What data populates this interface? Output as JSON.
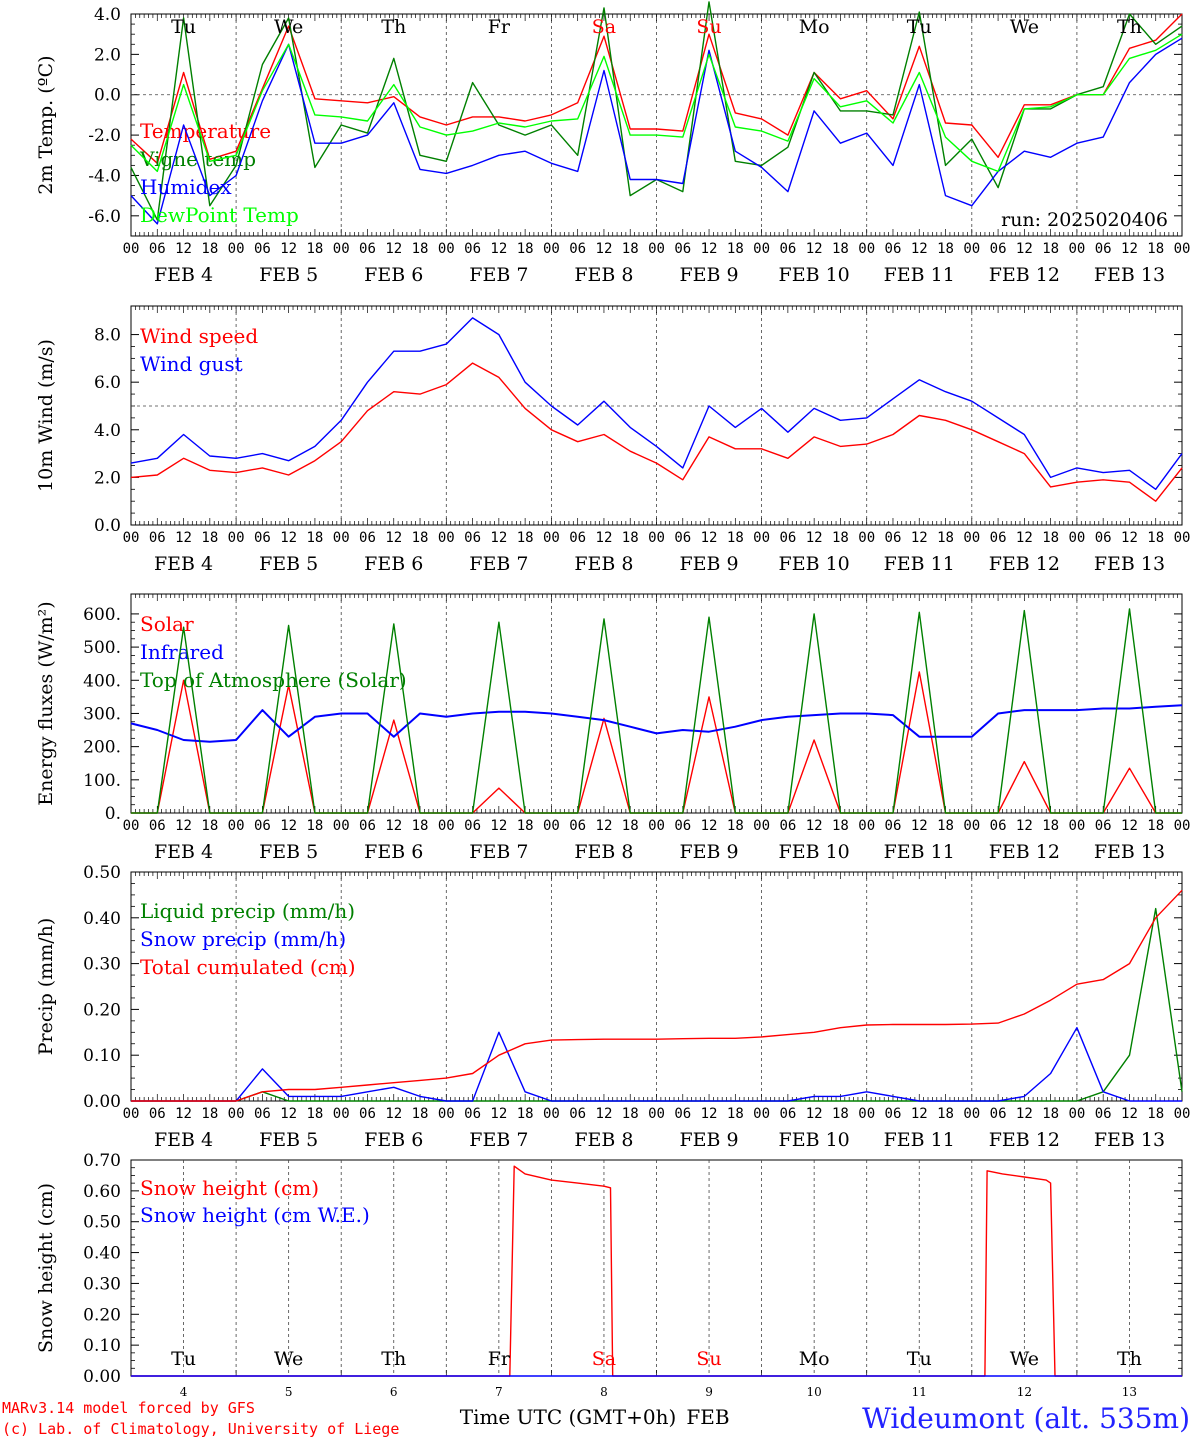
{
  "chart_data": [
    {
      "type": "line",
      "ylabel": "2m Temp. (ºC)",
      "ylim": [
        -7,
        4
      ],
      "yticks": [
        -6,
        -4,
        -2,
        0,
        2,
        4
      ],
      "ytick_labels": [
        "-6.0",
        "-4.0",
        "-2.0",
        "0.0",
        "2.0",
        "4.0"
      ],
      "reference_line": 0,
      "run_label": "run: 2025020406",
      "day_labels": [
        {
          "text": "Tu",
          "color": "#000000"
        },
        {
          "text": "We",
          "color": "#000000"
        },
        {
          "text": "Th",
          "color": "#000000"
        },
        {
          "text": "Fr",
          "color": "#000000"
        },
        {
          "text": "Sa",
          "color": "#ff0000"
        },
        {
          "text": "Su",
          "color": "#ff0000"
        },
        {
          "text": "Mo",
          "color": "#000000"
        },
        {
          "text": "Tu",
          "color": "#000000"
        },
        {
          "text": "We",
          "color": "#000000"
        },
        {
          "text": "Th",
          "color": "#000000"
        }
      ],
      "x_hours": [
        0,
        6,
        12,
        18,
        24,
        30,
        36,
        42,
        48,
        54,
        60,
        66,
        72,
        78,
        84,
        90,
        96,
        102,
        108,
        114,
        120,
        126,
        132,
        138,
        144,
        150,
        156,
        162,
        168,
        174,
        180,
        186,
        192,
        198,
        204,
        210,
        216,
        222,
        228,
        234,
        240
      ],
      "series": [
        {
          "name": "Temperature",
          "color": "#ff0000",
          "values": [
            -2.2,
            -3.4,
            1.1,
            -3.2,
            -2.8,
            0.3,
            3.4,
            -0.2,
            -0.3,
            -0.4,
            -0.1,
            -1.1,
            -1.5,
            -1.1,
            -1.1,
            -1.3,
            -1.0,
            -0.4,
            2.9,
            -1.7,
            -1.7,
            -1.8,
            3.0,
            -0.9,
            -1.2,
            -2.0,
            1.1,
            -0.2,
            0.2,
            -1.2,
            2.4,
            -1.4,
            -1.5,
            -3.1,
            -0.5,
            -0.5,
            0.0,
            0.0,
            2.3,
            2.7,
            4.0
          ]
        },
        {
          "name": "Vigne temp",
          "color": "#008000",
          "values": [
            -3.6,
            -6.2,
            3.8,
            -5.5,
            -3.5,
            1.5,
            3.8,
            -3.6,
            -1.5,
            -1.9,
            1.8,
            -3.0,
            -3.3,
            0.6,
            -1.5,
            -2.0,
            -1.5,
            -3.0,
            4.3,
            -5.0,
            -4.2,
            -4.8,
            4.6,
            -3.3,
            -3.5,
            -2.6,
            1.1,
            -0.8,
            -0.8,
            -1.0,
            4.1,
            -3.5,
            -2.2,
            -4.6,
            -0.7,
            -0.7,
            0.0,
            0.4,
            4.0,
            2.5,
            3.4
          ]
        },
        {
          "name": "Humidex",
          "color": "#0000ff",
          "values": [
            -5.0,
            -6.4,
            -1.5,
            -5.0,
            -4.0,
            -0.3,
            2.5,
            -2.4,
            -2.4,
            -2.0,
            -0.4,
            -3.7,
            -3.9,
            -3.5,
            -3.0,
            -2.8,
            -3.4,
            -3.8,
            1.2,
            -4.2,
            -4.2,
            -4.4,
            2.2,
            -2.8,
            -3.6,
            -4.8,
            -0.8,
            -2.4,
            -1.9,
            -3.5,
            0.5,
            -5.0,
            -5.5,
            -3.8,
            -2.8,
            -3.1,
            -2.4,
            -2.1,
            0.6,
            2.0,
            2.8
          ]
        },
        {
          "name": "DewPoint Temp",
          "color": "#00ff00",
          "values": [
            -2.5,
            -3.8,
            0.5,
            -3.3,
            -3.0,
            0.2,
            2.5,
            -1.0,
            -1.1,
            -1.3,
            0.5,
            -1.6,
            -2.0,
            -1.8,
            -1.4,
            -1.6,
            -1.3,
            -1.2,
            1.9,
            -2.0,
            -2.0,
            -2.1,
            2.0,
            -1.6,
            -1.8,
            -2.3,
            0.8,
            -0.6,
            -0.3,
            -1.4,
            1.1,
            -2.1,
            -3.3,
            -3.8,
            -0.7,
            -0.6,
            0.0,
            0.0,
            1.8,
            2.2,
            3.0
          ]
        }
      ]
    },
    {
      "type": "line",
      "ylabel": "10m Wind (m/s)",
      "ylim": [
        0,
        9.2
      ],
      "yticks": [
        0,
        2,
        4,
        6,
        8
      ],
      "ytick_labels": [
        "0.0",
        "2.0",
        "4.0",
        "6.0",
        "8.0"
      ],
      "reference_line": 5,
      "x_hours": [
        0,
        6,
        12,
        18,
        24,
        30,
        36,
        42,
        48,
        54,
        60,
        66,
        72,
        78,
        84,
        90,
        96,
        102,
        108,
        114,
        120,
        126,
        132,
        138,
        144,
        150,
        156,
        162,
        168,
        174,
        180,
        186,
        192,
        198,
        204,
        210,
        216,
        222,
        228,
        234,
        240
      ],
      "series": [
        {
          "name": "Wind speed",
          "color": "#ff0000",
          "values": [
            2.0,
            2.1,
            2.8,
            2.3,
            2.2,
            2.4,
            2.1,
            2.7,
            3.5,
            4.8,
            5.6,
            5.5,
            5.9,
            6.8,
            6.2,
            4.9,
            4.0,
            3.5,
            3.8,
            3.1,
            2.6,
            1.9,
            3.7,
            3.2,
            3.2,
            2.8,
            3.7,
            3.3,
            3.4,
            3.8,
            4.6,
            4.4,
            4.0,
            3.5,
            3.0,
            1.6,
            1.8,
            1.9,
            1.8,
            1.0,
            2.4
          ]
        },
        {
          "name": "Wind gust",
          "color": "#0000ff",
          "values": [
            2.6,
            2.8,
            3.8,
            2.9,
            2.8,
            3.0,
            2.7,
            3.3,
            4.4,
            6.0,
            7.3,
            7.3,
            7.6,
            8.7,
            8.0,
            6.0,
            5.0,
            4.2,
            5.2,
            4.1,
            3.3,
            2.4,
            5.0,
            4.1,
            4.9,
            3.9,
            4.9,
            4.4,
            4.5,
            5.3,
            6.1,
            5.6,
            5.2,
            4.5,
            3.8,
            2.0,
            2.4,
            2.2,
            2.3,
            1.5,
            3.0
          ]
        }
      ]
    },
    {
      "type": "line",
      "ylabel": "Energy fluxes (W/m²)",
      "ylim": [
        0,
        660
      ],
      "yticks": [
        0,
        100,
        200,
        300,
        400,
        500,
        600
      ],
      "ytick_labels": [
        "0.",
        "100.",
        "200.",
        "300.",
        "400.",
        "500.",
        "600."
      ],
      "x_hours": [
        0,
        6,
        12,
        18,
        24,
        30,
        36,
        42,
        48,
        54,
        60,
        66,
        72,
        78,
        84,
        90,
        96,
        102,
        108,
        114,
        120,
        126,
        132,
        138,
        144,
        150,
        156,
        162,
        168,
        174,
        180,
        186,
        192,
        198,
        204,
        210,
        216,
        222,
        228,
        234,
        240
      ],
      "series": [
        {
          "name": "Solar",
          "color": "#ff0000",
          "values": [
            0,
            0,
            400,
            0,
            0,
            0,
            385,
            0,
            0,
            0,
            280,
            0,
            0,
            0,
            75,
            0,
            0,
            0,
            285,
            0,
            0,
            0,
            350,
            0,
            0,
            0,
            220,
            0,
            0,
            0,
            425,
            0,
            0,
            0,
            155,
            0,
            0,
            0,
            135,
            0,
            0
          ]
        },
        {
          "name": "Infrared",
          "color": "#0000ff",
          "values": [
            270,
            250,
            220,
            215,
            220,
            310,
            230,
            290,
            300,
            300,
            230,
            300,
            290,
            300,
            305,
            305,
            300,
            290,
            280,
            260,
            240,
            250,
            245,
            260,
            280,
            290,
            295,
            300,
            300,
            295,
            230,
            230,
            230,
            300,
            310,
            310,
            310,
            315,
            315,
            320,
            325
          ]
        },
        {
          "name": "Top of Atmosphere (Solar)",
          "color": "#008000",
          "values": [
            0,
            0,
            560,
            0,
            0,
            0,
            565,
            0,
            0,
            0,
            570,
            0,
            0,
            0,
            575,
            0,
            0,
            0,
            585,
            0,
            0,
            0,
            590,
            0,
            0,
            0,
            600,
            0,
            0,
            0,
            605,
            0,
            0,
            0,
            610,
            0,
            0,
            0,
            615,
            0,
            0
          ]
        }
      ]
    },
    {
      "type": "line",
      "ylabel": "Precip (mm/h)",
      "ylim": [
        0,
        0.5
      ],
      "yticks": [
        0,
        0.1,
        0.2,
        0.3,
        0.4,
        0.5
      ],
      "ytick_labels": [
        "0.00",
        "0.10",
        "0.20",
        "0.30",
        "0.40",
        "0.50"
      ],
      "x_hours": [
        0,
        6,
        12,
        18,
        24,
        30,
        36,
        42,
        48,
        54,
        60,
        66,
        72,
        78,
        84,
        90,
        96,
        102,
        108,
        114,
        120,
        126,
        132,
        138,
        144,
        150,
        156,
        162,
        168,
        174,
        180,
        186,
        192,
        198,
        204,
        210,
        216,
        222,
        228,
        234,
        240
      ],
      "series": [
        {
          "name": "Liquid precip (mm/h)",
          "color": "#008000",
          "values": [
            0,
            0,
            0,
            0,
            0,
            0.02,
            0,
            0,
            0,
            0,
            0,
            0,
            0,
            0,
            0,
            0,
            0,
            0,
            0,
            0,
            0,
            0,
            0,
            0,
            0,
            0,
            0,
            0,
            0,
            0,
            0,
            0,
            0,
            0,
            0,
            0,
            0,
            0.02,
            0.1,
            0.42,
            0.02
          ]
        },
        {
          "name": "Snow precip (mm/h)",
          "color": "#0000ff",
          "values": [
            0,
            0,
            0,
            0,
            0,
            0.07,
            0.01,
            0.01,
            0.01,
            0.02,
            0.03,
            0.01,
            0,
            0,
            0.15,
            0.02,
            0,
            0,
            0,
            0,
            0,
            0,
            0,
            0,
            0,
            0,
            0.01,
            0.01,
            0.02,
            0.01,
            0,
            0,
            0,
            0,
            0.01,
            0.06,
            0.16,
            0.02,
            0,
            0,
            0
          ]
        },
        {
          "name": "Total cumulated (cm)",
          "color": "#ff0000",
          "values": [
            0,
            0,
            0,
            0,
            0,
            0.02,
            0.025,
            0.025,
            0.03,
            0.035,
            0.04,
            0.045,
            0.05,
            0.06,
            0.1,
            0.125,
            0.133,
            0.134,
            0.135,
            0.135,
            0.135,
            0.136,
            0.137,
            0.137,
            0.14,
            0.145,
            0.15,
            0.16,
            0.166,
            0.167,
            0.167,
            0.167,
            0.168,
            0.17,
            0.19,
            0.22,
            0.255,
            0.265,
            0.3,
            0.4,
            0.46
          ]
        }
      ]
    },
    {
      "type": "line",
      "ylabel": "Snow height (cm)",
      "ylim": [
        0,
        0.7
      ],
      "yticks": [
        0,
        0.1,
        0.2,
        0.3,
        0.4,
        0.5,
        0.6,
        0.7
      ],
      "ytick_labels": [
        "0.00",
        "0.10",
        "0.20",
        "0.30",
        "0.40",
        "0.50",
        "0.60",
        "0.70"
      ],
      "xlabel": "Time UTC (GMT+0h)",
      "month_label": "FEB",
      "day_numbers": [
        "4",
        "5",
        "6",
        "7",
        "8",
        "9",
        "10",
        "11",
        "12",
        "13"
      ],
      "day_labels": [
        {
          "text": "Tu",
          "color": "#000000"
        },
        {
          "text": "We",
          "color": "#000000"
        },
        {
          "text": "Th",
          "color": "#000000"
        },
        {
          "text": "Fr",
          "color": "#000000"
        },
        {
          "text": "Sa",
          "color": "#ff0000"
        },
        {
          "text": "Su",
          "color": "#ff0000"
        },
        {
          "text": "Mo",
          "color": "#000000"
        },
        {
          "text": "Tu",
          "color": "#000000"
        },
        {
          "text": "We",
          "color": "#000000"
        },
        {
          "text": "Th",
          "color": "#000000"
        }
      ],
      "series": [
        {
          "name": "Snow height (cm)",
          "color": "#ff0000",
          "points": [
            [
              0,
              0
            ],
            [
              86.5,
              0
            ],
            [
              87.5,
              0.68
            ],
            [
              90,
              0.655
            ],
            [
              96,
              0.635
            ],
            [
              102,
              0.625
            ],
            [
              108,
              0.615
            ],
            [
              109.5,
              0.61
            ],
            [
              110,
              0
            ],
            [
              195,
              0
            ],
            [
              195.5,
              0.665
            ],
            [
              199,
              0.655
            ],
            [
              204,
              0.645
            ],
            [
              209,
              0.635
            ],
            [
              210,
              0.625
            ],
            [
              211,
              0
            ],
            [
              240,
              0
            ]
          ]
        },
        {
          "name": "Snow height (cm W.E.)",
          "color": "#0000ff",
          "points": [
            [
              0,
              0
            ],
            [
              240,
              0
            ]
          ]
        }
      ]
    }
  ],
  "x_axis": {
    "hour_labels": [
      "00",
      "06",
      "12",
      "18"
    ],
    "final_label": "00",
    "date_labels": [
      "FEB  4",
      "FEB  5",
      "FEB  6",
      "FEB  7",
      "FEB  8",
      "FEB  9",
      "FEB 10",
      "FEB 11",
      "FEB 12",
      "FEB 13"
    ]
  },
  "footer": {
    "model_line": "MARv3.14 model forced by GFS",
    "credit_line": "(c) Lab. of Climatology, University of Liege",
    "station": "Wideumont (alt. 535m)"
  }
}
